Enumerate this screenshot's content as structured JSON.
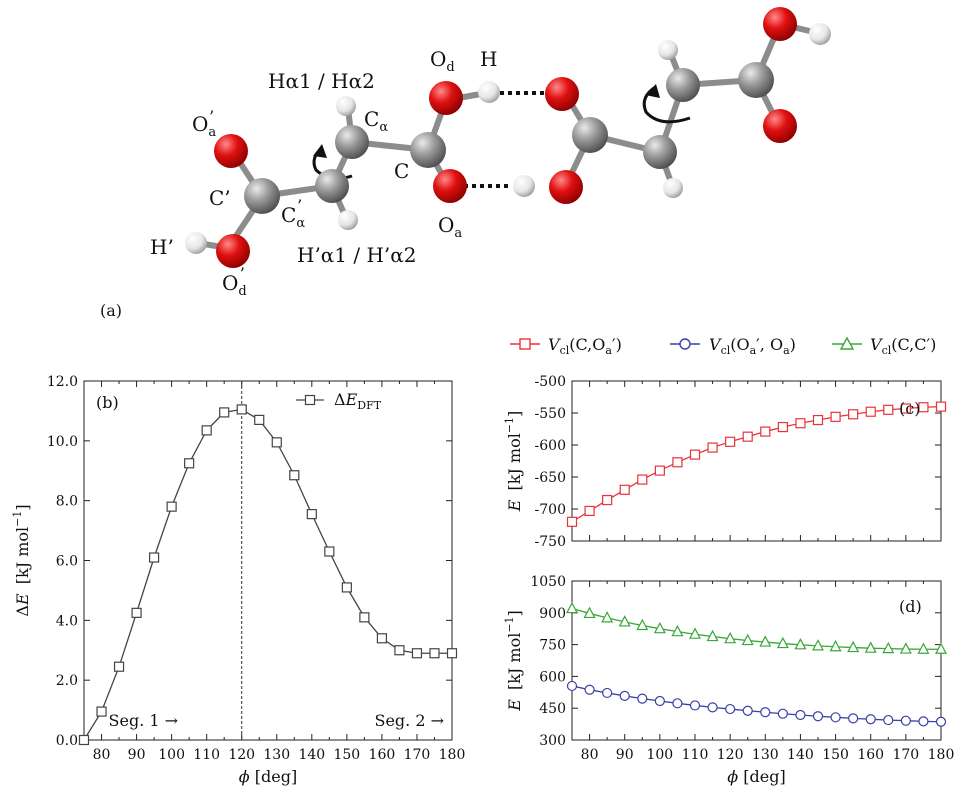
{
  "panel_a": {
    "letter": "(a)",
    "atom_labels": {
      "od": "O",
      "od_sub": "d",
      "h_top": "H",
      "ca": "C",
      "ca_sub": "α",
      "c": "C",
      "oa": "O",
      "oa_sub": "a",
      "oa_p": "O",
      "oa_p_sub": "a",
      "oa_p_mark": "’",
      "c_p": "C’",
      "ca_p": "C",
      "ca_p_sub": "α",
      "ca_p_mark": "’",
      "h_p": "H’",
      "od_p": "O",
      "od_p_sub": "d",
      "od_p_mark": "’",
      "halpha": "Hα1 / Hα2",
      "halpha_p": "H’α1 / H’α2"
    }
  },
  "legend_right": {
    "items": [
      {
        "v": "V",
        "sub": "cl",
        "arg": "(C,O",
        "arg_sub": "a",
        "arg_end": "′)",
        "color": "#e8333a",
        "marker": "square"
      },
      {
        "v": "V",
        "sub": "cl",
        "arg": "(O",
        "arg_sub": "a",
        "arg_end": "′, O",
        "arg_sub2": "a",
        "arg_end2": ")",
        "color": "#3b3fa8",
        "marker": "circle"
      },
      {
        "v": "V",
        "sub": "cl",
        "arg": "(C,C′)",
        "color": "#3aa63a",
        "marker": "triangle"
      }
    ]
  },
  "chart_data": [
    {
      "panel": "(b)",
      "type": "line",
      "xlabel": "ϕ [deg]",
      "ylabel_delta": "ΔE",
      "ylabel_unit": "[kJ mol",
      "ylabel_exp": "−1",
      "ylabel_close": "]",
      "xlim": [
        75,
        180
      ],
      "ylim": [
        0,
        12
      ],
      "x_ticks": [
        80,
        90,
        100,
        110,
        120,
        130,
        140,
        150,
        160,
        170,
        180
      ],
      "y_ticks": [
        "0.0",
        "2.0",
        "4.0",
        "6.0",
        "8.0",
        "10.0",
        "12.0"
      ],
      "legend": {
        "label": "ΔE",
        "sub": "DFT",
        "position": "top-right"
      },
      "divider_x": 120,
      "annotations": [
        "Seg. 1 →",
        "Seg. 2 →"
      ],
      "series": [
        {
          "name": "ΔE_DFT",
          "color": "#444444",
          "marker": "square",
          "x": [
            75,
            80,
            85,
            90,
            95,
            100,
            105,
            110,
            115,
            120,
            125,
            130,
            135,
            140,
            145,
            150,
            155,
            160,
            165,
            170,
            175,
            180
          ],
          "y": [
            0.0,
            0.95,
            2.45,
            4.25,
            6.1,
            7.8,
            9.25,
            10.35,
            10.95,
            11.05,
            10.7,
            9.95,
            8.85,
            7.55,
            6.3,
            5.1,
            4.1,
            3.4,
            3.0,
            2.9,
            2.9,
            2.9
          ]
        }
      ]
    },
    {
      "panel": "(c)",
      "type": "line",
      "xlabel": "",
      "ylabel_e": "E",
      "ylabel_unit": "[kJ mol",
      "ylabel_exp": "−1",
      "ylabel_close": "]",
      "xlim": [
        75,
        180
      ],
      "ylim": [
        -750,
        -500
      ],
      "x_ticks": [
        80,
        90,
        100,
        110,
        120,
        130,
        140,
        150,
        160,
        170,
        180
      ],
      "y_ticks": [
        "-500",
        "-550",
        "-600",
        "-650",
        "-700",
        "-750"
      ],
      "series": [
        {
          "name": "Vcl(C,Oa′)",
          "color": "#e8333a",
          "marker": "square",
          "x": [
            75,
            80,
            85,
            90,
            95,
            100,
            105,
            110,
            115,
            120,
            125,
            130,
            135,
            140,
            145,
            150,
            155,
            160,
            165,
            170,
            175,
            180
          ],
          "y": [
            -720,
            -703,
            -686,
            -670,
            -654,
            -640,
            -627,
            -615,
            -604,
            -595,
            -587,
            -579,
            -572,
            -566,
            -561,
            -556,
            -552,
            -548,
            -545,
            -543,
            -541,
            -540
          ]
        }
      ]
    },
    {
      "panel": "(d)",
      "type": "line",
      "xlabel": "ϕ [deg]",
      "ylabel_e": "E",
      "ylabel_unit": "[kJ mol",
      "ylabel_exp": "−1",
      "ylabel_close": "]",
      "xlim": [
        75,
        180
      ],
      "ylim": [
        300,
        1050
      ],
      "x_ticks": [
        80,
        90,
        100,
        110,
        120,
        130,
        140,
        150,
        160,
        170,
        180
      ],
      "y_ticks": [
        "1050",
        "900",
        "750",
        "600",
        "450",
        "300"
      ],
      "series": [
        {
          "name": "Vcl(C,C′)",
          "color": "#3aa63a",
          "marker": "triangle",
          "x": [
            75,
            80,
            85,
            90,
            95,
            100,
            105,
            110,
            115,
            120,
            125,
            130,
            135,
            140,
            145,
            150,
            155,
            160,
            165,
            170,
            175,
            180
          ],
          "y": [
            920,
            897,
            876,
            857,
            840,
            825,
            811,
            799,
            788,
            778,
            769,
            762,
            755,
            749,
            744,
            740,
            736,
            733,
            731,
            729,
            728,
            728
          ]
        },
        {
          "name": "Vcl(Oa′, Oa)",
          "color": "#3b3fa8",
          "marker": "circle",
          "x": [
            75,
            80,
            85,
            90,
            95,
            100,
            105,
            110,
            115,
            120,
            125,
            130,
            135,
            140,
            145,
            150,
            155,
            160,
            165,
            170,
            175,
            180
          ],
          "y": [
            555,
            537,
            522,
            508,
            495,
            484,
            473,
            463,
            454,
            446,
            438,
            431,
            424,
            418,
            412,
            407,
            402,
            398,
            394,
            391,
            388,
            386
          ]
        }
      ]
    }
  ]
}
